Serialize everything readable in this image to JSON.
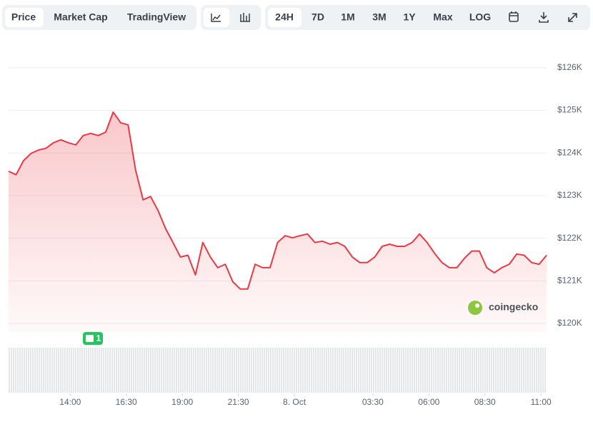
{
  "toolbar": {
    "view_tabs": [
      "Price",
      "Market Cap",
      "TradingView"
    ],
    "range_tabs": [
      "24H",
      "7D",
      "1M",
      "3M",
      "1Y",
      "Max",
      "LOG"
    ]
  },
  "chart_data": {
    "type": "area",
    "color": "#ea3943",
    "values": [
      123570,
      123490,
      123820,
      123990,
      124070,
      124110,
      124240,
      124310,
      124240,
      124190,
      124410,
      124460,
      124410,
      124490,
      124960,
      124710,
      124660,
      123600,
      122900,
      122980,
      122650,
      122230,
      121900,
      121560,
      121600,
      121140,
      121900,
      121560,
      121310,
      121390,
      120980,
      120810,
      120810,
      121390,
      121310,
      121310,
      121900,
      122060,
      122010,
      122060,
      122100,
      121900,
      121930,
      121860,
      121900,
      121810,
      121560,
      121430,
      121430,
      121560,
      121810,
      121860,
      121810,
      121810,
      121900,
      122100,
      121900,
      121650,
      121430,
      121310,
      121310,
      121530,
      121700,
      121700,
      121310,
      121190,
      121310,
      121390,
      121630,
      121600,
      121430,
      121390,
      121600
    ],
    "xlim": [
      0,
      72
    ],
    "xticks": [
      {
        "value": 8.25,
        "label": "14:00"
      },
      {
        "value": 15.75,
        "label": "16:30"
      },
      {
        "value": 23.25,
        "label": "19:00"
      },
      {
        "value": 30.75,
        "label": "21:30"
      },
      {
        "value": 38.25,
        "label": "8. Oct"
      },
      {
        "value": 48.75,
        "label": "03:30"
      },
      {
        "value": 56.25,
        "label": "06:00"
      },
      {
        "value": 63.75,
        "label": "08:30"
      },
      {
        "value": 71.25,
        "label": "11:00"
      }
    ],
    "ylim": [
      119800,
      126400
    ],
    "yticks": [
      {
        "value": 120000,
        "label": "$120K"
      },
      {
        "value": 121000,
        "label": "$121K"
      },
      {
        "value": 122000,
        "label": "$122K"
      },
      {
        "value": 123000,
        "label": "$123K"
      },
      {
        "value": 124000,
        "label": "$124K"
      },
      {
        "value": 125000,
        "label": "$125K"
      },
      {
        "value": 126000,
        "label": "$126K"
      }
    ],
    "grid": true,
    "event_badge": "1",
    "watermark": "coingecko"
  }
}
